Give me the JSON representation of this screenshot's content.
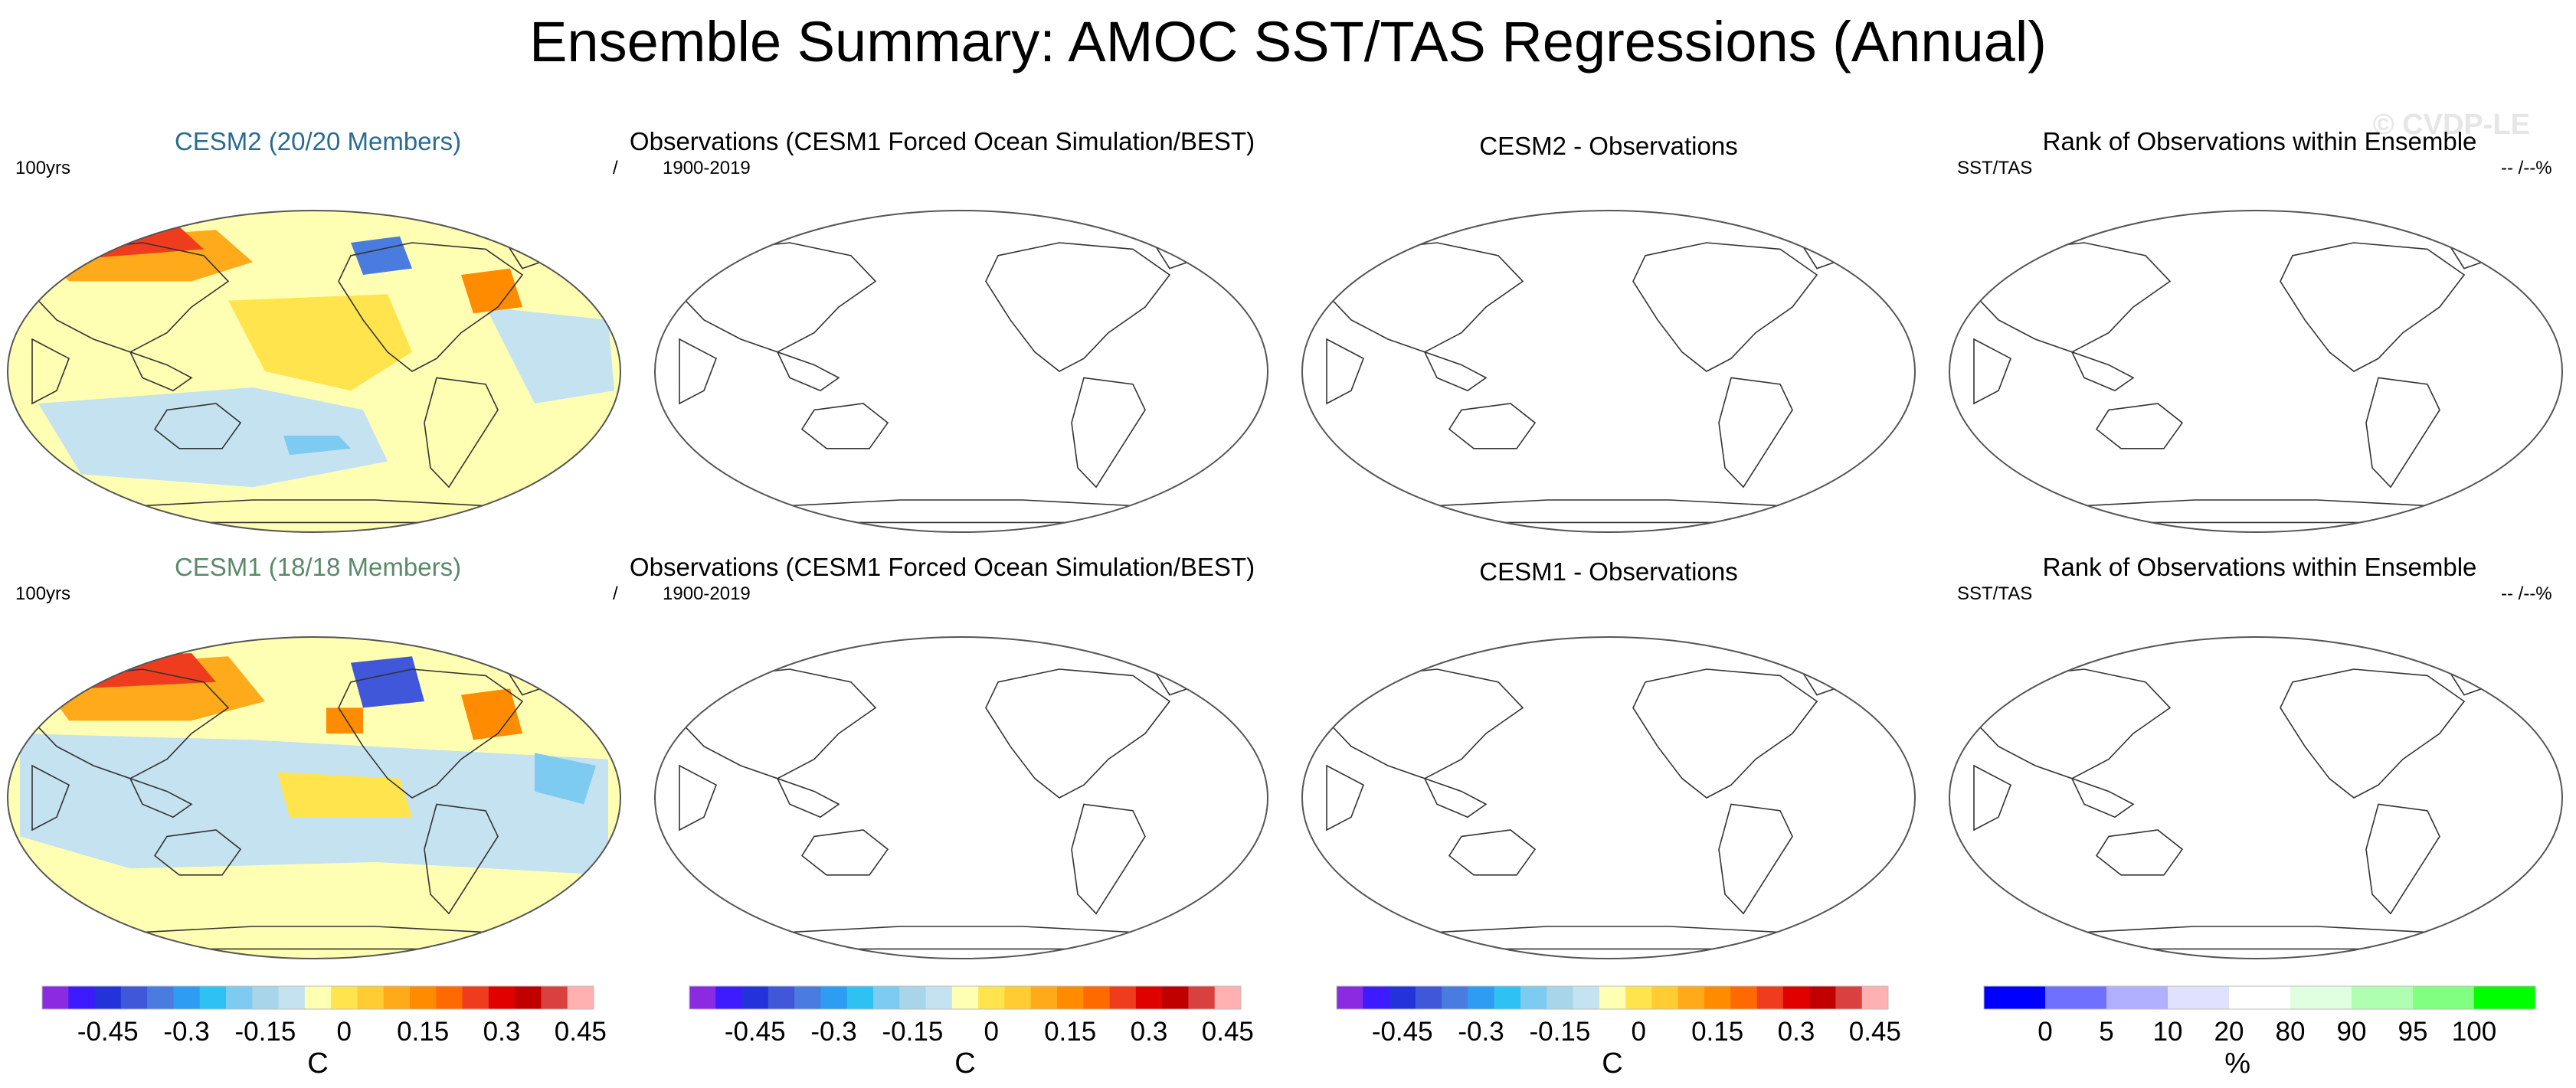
{
  "page": {
    "title": "Ensemble Summary: AMOC SST/TAS Regressions (Annual)",
    "watermark": "© CVDP-LE"
  },
  "colors": {
    "diverging": [
      "#8a2be2",
      "#3d1aff",
      "#2433d9",
      "#3f57d8",
      "#4a7ce0",
      "#2e9cf2",
      "#2ec2f2",
      "#7dcbf0",
      "#a9d5ea",
      "#c4e2f0",
      "#ffffb3",
      "#ffe44d",
      "#ffcc33",
      "#ffaa1a",
      "#ff8c00",
      "#ff6a00",
      "#f03c1e",
      "#e00000",
      "#c00000",
      "#d94040",
      "#ffb0b0"
    ],
    "rank": [
      "#0000ff",
      "#7070ff",
      "#b0b0ff",
      "#e0e0ff",
      "#ffffff",
      "#e0ffe0",
      "#b0ffb0",
      "#80ff80",
      "#00ff00"
    ],
    "land_outline": "#333333",
    "ellipse_outline": "#555555"
  },
  "rows": [
    {
      "panels": [
        {
          "title": "CESM2 (20/20 Members)",
          "title_color": "#2b6b8f",
          "left_label": "100yrs",
          "right_label": "/",
          "fill": "cesm2"
        },
        {
          "title": "Observations (CESM1 Forced Ocean Simulation/BEST)",
          "title_color": "#000000",
          "left_label": "1900-2019",
          "right_label": "",
          "fill": "none"
        },
        {
          "title": "CESM2 - Observations",
          "title_color": "#000000",
          "left_label": "",
          "right_label": "",
          "fill": "none"
        },
        {
          "title": "Rank of Observations within Ensemble",
          "title_color": "#000000",
          "left_label": "SST/TAS",
          "right_label": "-- /--%",
          "fill": "none"
        }
      ]
    },
    {
      "panels": [
        {
          "title": "CESM1 (18/18 Members)",
          "title_color": "#5a8a6a",
          "left_label": "100yrs",
          "right_label": "/",
          "fill": "cesm1"
        },
        {
          "title": "Observations (CESM1 Forced Ocean Simulation/BEST)",
          "title_color": "#000000",
          "left_label": "1900-2019",
          "right_label": "",
          "fill": "none"
        },
        {
          "title": "CESM1 - Observations",
          "title_color": "#000000",
          "left_label": "",
          "right_label": "",
          "fill": "none"
        },
        {
          "title": "Rank of Observations within Ensemble",
          "title_color": "#000000",
          "left_label": "SST/TAS",
          "right_label": "-- /--%",
          "fill": "none"
        }
      ]
    }
  ],
  "chart_data": [
    {
      "type": "heatmap",
      "title": "CESM2 (20/20 Members)",
      "projection": "global map",
      "period": "100yrs",
      "units": "C",
      "contour_levels": [
        -0.5,
        -0.45,
        -0.4,
        -0.35,
        -0.3,
        -0.25,
        -0.2,
        -0.15,
        -0.1,
        -0.05,
        0,
        0.05,
        0.1,
        0.15,
        0.2,
        0.25,
        0.3,
        0.35,
        0.4,
        0.45,
        0.5
      ]
    },
    {
      "type": "heatmap",
      "title": "Observations (CESM1 Forced Ocean Simulation/BEST)",
      "period": "1900-2019",
      "units": "C",
      "values": []
    },
    {
      "type": "heatmap",
      "title": "CESM2 - Observations",
      "units": "C",
      "values": []
    },
    {
      "type": "heatmap",
      "title": "Rank of Observations within Ensemble",
      "variable": "SST/TAS",
      "units": "%",
      "values": []
    },
    {
      "type": "heatmap",
      "title": "CESM1 (18/18 Members)",
      "period": "100yrs",
      "units": "C"
    },
    {
      "type": "heatmap",
      "title": "Observations (CESM1 Forced Ocean Simulation/BEST)",
      "period": "1900-2019",
      "units": "C",
      "values": []
    },
    {
      "type": "heatmap",
      "title": "CESM1 - Observations",
      "units": "C",
      "values": []
    },
    {
      "type": "heatmap",
      "title": "Rank of Observations within Ensemble",
      "variable": "SST/TAS",
      "units": "%",
      "values": []
    }
  ],
  "colorbars": [
    {
      "kind": "diverging",
      "unit": "C",
      "ticks": [
        {
          "label": "-0.45",
          "pos": 1
        },
        {
          "label": "-0.3",
          "pos": 2
        },
        {
          "label": "-0.15",
          "pos": 3
        },
        {
          "label": "0",
          "pos": 4
        },
        {
          "label": "0.15",
          "pos": 5
        },
        {
          "label": "0.3",
          "pos": 6
        },
        {
          "label": "0.45",
          "pos": 7
        }
      ]
    },
    {
      "kind": "diverging",
      "unit": "C",
      "ticks": [
        {
          "label": "-0.45",
          "pos": 1
        },
        {
          "label": "-0.3",
          "pos": 2
        },
        {
          "label": "-0.15",
          "pos": 3
        },
        {
          "label": "0",
          "pos": 4
        },
        {
          "label": "0.15",
          "pos": 5
        },
        {
          "label": "0.3",
          "pos": 6
        },
        {
          "label": "0.45",
          "pos": 7
        }
      ]
    },
    {
      "kind": "diverging",
      "unit": "C",
      "ticks": [
        {
          "label": "-0.45",
          "pos": 1
        },
        {
          "label": "-0.3",
          "pos": 2
        },
        {
          "label": "-0.15",
          "pos": 3
        },
        {
          "label": "0",
          "pos": 4
        },
        {
          "label": "0.15",
          "pos": 5
        },
        {
          "label": "0.3",
          "pos": 6
        },
        {
          "label": "0.45",
          "pos": 7
        }
      ]
    },
    {
      "kind": "rank",
      "unit": "%",
      "ticks": [
        {
          "label": "0",
          "pos": 1
        },
        {
          "label": "5",
          "pos": 2
        },
        {
          "label": "10",
          "pos": 3
        },
        {
          "label": "20",
          "pos": 4
        },
        {
          "label": "80",
          "pos": 5
        },
        {
          "label": "90",
          "pos": 6
        },
        {
          "label": "95",
          "pos": 7
        },
        {
          "label": "100",
          "pos": 8
        }
      ]
    }
  ]
}
